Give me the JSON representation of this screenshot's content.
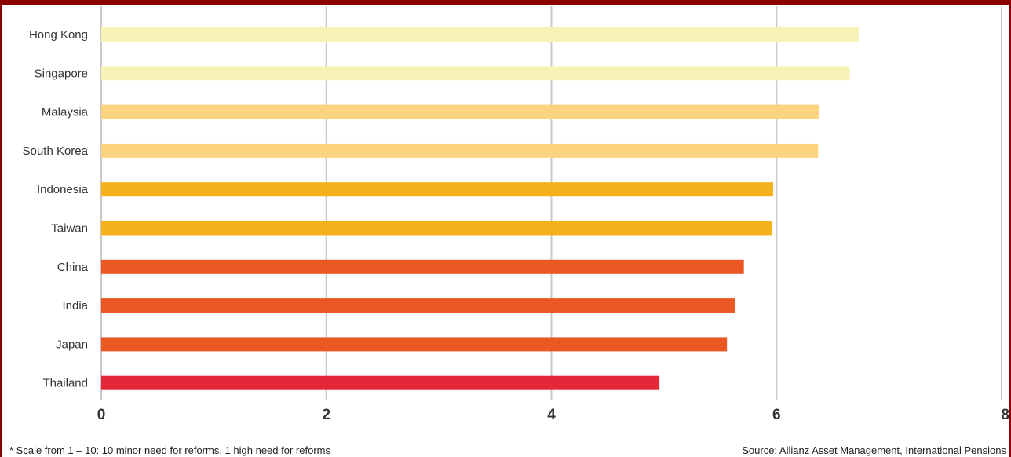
{
  "chart_data": {
    "type": "bar",
    "orientation": "horizontal",
    "categories": [
      "Hong Kong",
      "Singapore",
      "Malaysia",
      "South Korea",
      "Indonesia",
      "Taiwan",
      "China",
      "India",
      "Japan",
      "Thailand"
    ],
    "values": [
      6.73,
      6.65,
      6.38,
      6.37,
      5.97,
      5.96,
      5.71,
      5.63,
      5.56,
      4.96
    ],
    "bar_colors": [
      "#f7f3b8",
      "#f7f3b8",
      "#fcd37f",
      "#fcd37f",
      "#f5b11c",
      "#f5b11c",
      "#ea5824",
      "#ea5824",
      "#ea5824",
      "#e4283a"
    ],
    "xlim": [
      0,
      8
    ],
    "xticks": [
      0,
      2,
      4,
      6,
      8
    ],
    "grid": true
  },
  "footnote": "* Scale from 1 – 10: 10 minor need for reforms, 1 high need for reforms",
  "source": "Source: Allianz Asset Management, International Pensions",
  "colors": {
    "frame": "#8b0000",
    "grid": "#c8c8c8",
    "text": "#333333"
  }
}
